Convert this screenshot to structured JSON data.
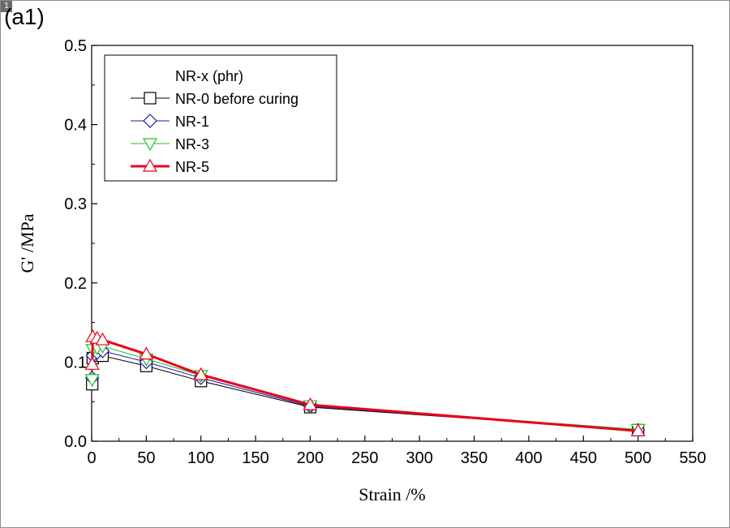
{
  "panel_label": "(a1)",
  "corner_mark": "1",
  "chart_data": {
    "type": "line",
    "xlabel": "Strain /%",
    "ylabel": "G' /MPa",
    "xlim": [
      0,
      550
    ],
    "ylim": [
      0,
      0.5
    ],
    "x_ticks": [
      "0",
      "50",
      "100",
      "150",
      "200",
      "250",
      "300",
      "350",
      "400",
      "450",
      "500",
      "550"
    ],
    "y_ticks": [
      "0.0",
      "0.1",
      "0.2",
      "0.3",
      "0.4",
      "0.5"
    ],
    "legend_title": "NR-x (phr)",
    "legend_position": "top-left",
    "x": [
      0.5,
      1,
      5,
      10,
      50,
      100,
      200,
      500
    ],
    "series": [
      {
        "name": "NR-0 before curing",
        "marker": "square",
        "color": "#000000",
        "values": [
          0.072,
          0.105,
          0.108,
          0.108,
          0.095,
          0.076,
          0.043,
          0.014
        ]
      },
      {
        "name": "NR-1",
        "marker": "diamond",
        "color": "#1a1aa0",
        "values": [
          0.08,
          0.108,
          0.112,
          0.114,
          0.1,
          0.08,
          0.044,
          0.014
        ]
      },
      {
        "name": "NR-3",
        "marker": "triangle-down",
        "color": "#22c022",
        "values": [
          0.078,
          0.116,
          0.118,
          0.12,
          0.104,
          0.083,
          0.045,
          0.015
        ]
      },
      {
        "name": "NR-5",
        "marker": "triangle-up",
        "color": "#e8001c",
        "values": [
          0.097,
          0.132,
          0.13,
          0.128,
          0.11,
          0.084,
          0.046,
          0.013
        ]
      }
    ]
  }
}
